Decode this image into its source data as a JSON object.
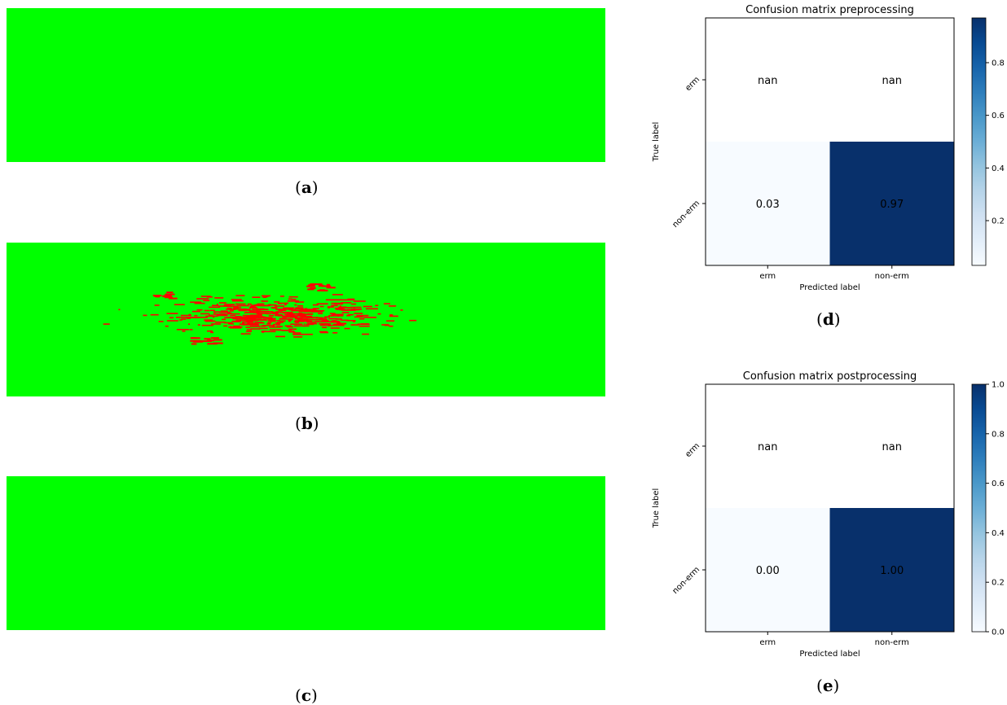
{
  "panels": {
    "a": {
      "caption_letter": "a"
    },
    "b": {
      "caption_letter": "b"
    },
    "c": {
      "caption_letter": "c"
    },
    "d": {
      "caption_letter": "d"
    },
    "e": {
      "caption_letter": "e"
    }
  },
  "colors": {
    "map_background": "#00ff00",
    "map_marks": "#ff0000",
    "cmap_low": "#f7fbff",
    "cmap_high": "#08306b"
  },
  "chart_data": [
    {
      "type": "heatmap",
      "title": "Confusion matrix preprocessing",
      "xlabel": "Predicted label",
      "ylabel": "True label",
      "x_categories": [
        "erm",
        "non-erm"
      ],
      "y_categories": [
        "erm",
        "non-erm"
      ],
      "cell_labels": [
        [
          "nan",
          "nan"
        ],
        [
          "0.03",
          "0.97"
        ]
      ],
      "values": [
        [
          null,
          null
        ],
        [
          0.03,
          0.97
        ]
      ],
      "colorbar": {
        "range": [
          0.03,
          0.97
        ],
        "ticks": [
          "0.2",
          "0.4",
          "0.6",
          "0.8"
        ],
        "tick_values": [
          0.2,
          0.4,
          0.6,
          0.8
        ]
      }
    },
    {
      "type": "heatmap",
      "title": "Confusion matrix postprocessing",
      "xlabel": "Predicted label",
      "ylabel": "True label",
      "x_categories": [
        "erm",
        "non-erm"
      ],
      "y_categories": [
        "erm",
        "non-erm"
      ],
      "cell_labels": [
        [
          "nan",
          "nan"
        ],
        [
          "0.00",
          "1.00"
        ]
      ],
      "values": [
        [
          null,
          null
        ],
        [
          0.0,
          1.0
        ]
      ],
      "colorbar": {
        "range": [
          0.0,
          1.0
        ],
        "ticks": [
          "0.0",
          "0.2",
          "0.4",
          "0.6",
          "0.8",
          "1.0"
        ],
        "tick_values": [
          0.0,
          0.2,
          0.4,
          0.6,
          0.8,
          1.0
        ]
      }
    }
  ]
}
